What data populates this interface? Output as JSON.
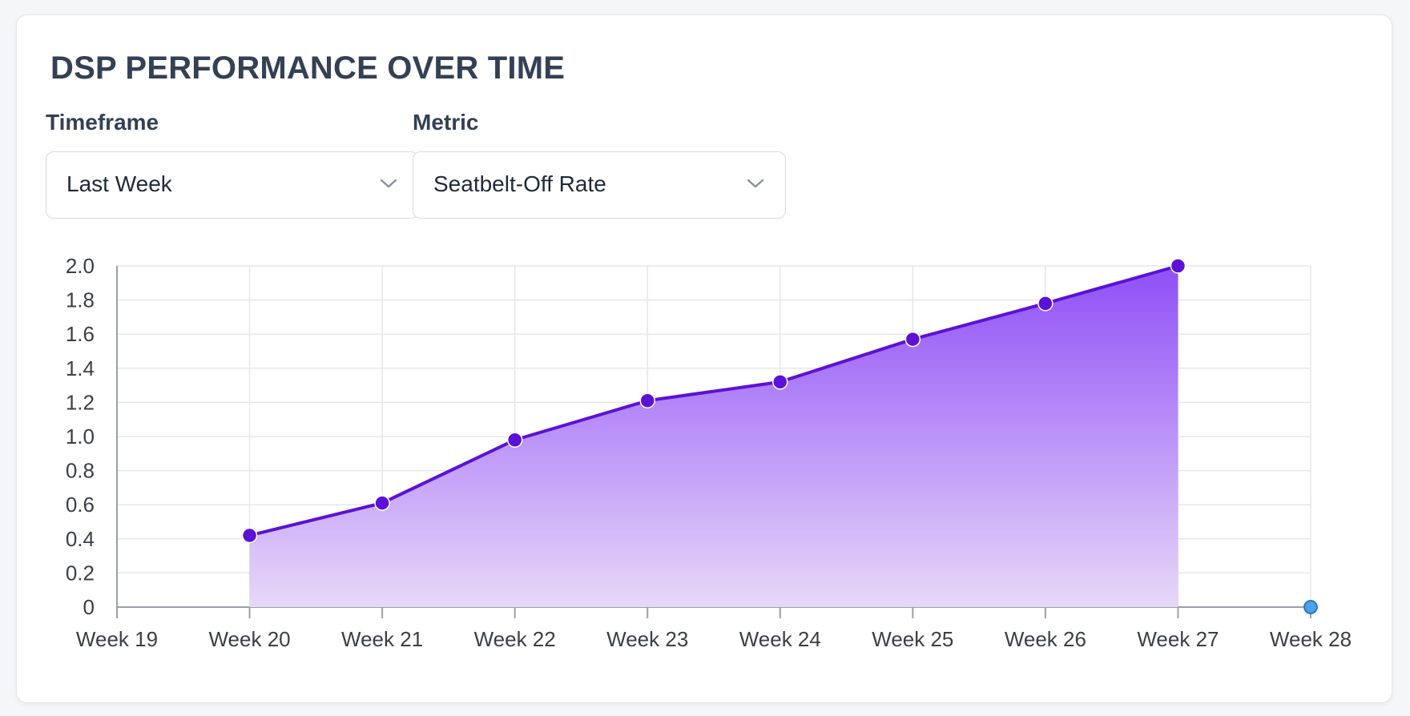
{
  "card": {
    "title": "DSP PERFORMANCE OVER TIME"
  },
  "controls": {
    "timeframe": {
      "label": "Timeframe",
      "value": "Last Week"
    },
    "metric": {
      "label": "Metric",
      "value": "Seatbelt-Off Rate"
    }
  },
  "icons": {
    "dropdown": "chevron-down-icon"
  },
  "colors": {
    "line": "#5b12d6",
    "fill_top": "#8f4ff7",
    "fill_bottom": "#e7d8f8",
    "grid": "#e6e7ea",
    "axis": "#9aa0a8",
    "tick_text": "#3b3f45",
    "empty_point": "#4aa3e8"
  },
  "chart_data": {
    "type": "area",
    "x": [
      "Week 19",
      "Week 20",
      "Week 21",
      "Week 22",
      "Week 23",
      "Week 24",
      "Week 25",
      "Week 26",
      "Week 27",
      "Week 28"
    ],
    "series": [
      {
        "values": [
          null,
          0.42,
          0.61,
          0.98,
          1.21,
          1.32,
          1.57,
          1.78,
          2.0,
          0
        ]
      }
    ],
    "yticks": [
      "0",
      "0.2",
      "0.4",
      "0.6",
      "0.8",
      "1.0",
      "1.2",
      "1.4",
      "1.6",
      "1.8",
      "2.0"
    ],
    "ylim": [
      0,
      2.0
    ],
    "grid": true,
    "legend": "none",
    "title": "",
    "xlabel": "",
    "ylabel": ""
  }
}
